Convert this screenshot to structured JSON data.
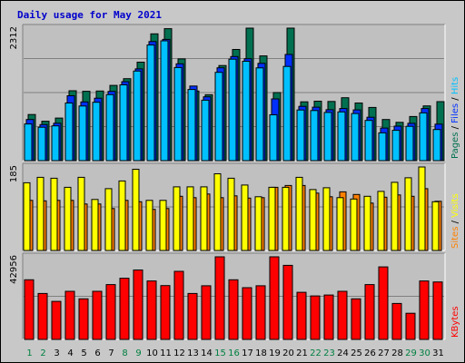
{
  "title": "Daily usage for May 2021",
  "colors": {
    "title": "#0000cc",
    "hits": "#00c0ff",
    "files": "#0030ff",
    "pages": "#007050",
    "visits": "#ffff00",
    "sites": "#ff8000",
    "kbytes": "#ff0000",
    "panel": "#c0c0c0",
    "day_weekday": "#000000",
    "day_weekend": "#008040"
  },
  "chart_data": [
    {
      "type": "bar",
      "panel": "pages-files-hits",
      "ymax_label": "2312",
      "categories": [
        "1",
        "2",
        "3",
        "4",
        "5",
        "6",
        "7",
        "8",
        "9",
        "10",
        "11",
        "12",
        "13",
        "14",
        "15",
        "16",
        "17",
        "18",
        "19",
        "20",
        "21",
        "22",
        "23",
        "24",
        "25",
        "26",
        "27",
        "28",
        "29",
        "30",
        "31"
      ],
      "series": [
        {
          "name": "Hits",
          "values": [
            640,
            582,
            606,
            1005,
            953,
            1019,
            1151,
            1322,
            1563,
            2017,
            2091,
            1625,
            1242,
            1055,
            1541,
            1771,
            1734,
            1619,
            799,
            1644,
            883,
            874,
            841,
            850,
            822,
            702,
            485,
            529,
            598,
            833,
            543
          ]
        },
        {
          "name": "Files",
          "values": [
            717,
            629,
            653,
            1132,
            1025,
            1090,
            1209,
            1377,
            1601,
            2077,
            2115,
            1689,
            1301,
            1114,
            1620,
            1817,
            1779,
            1698,
            1077,
            1853,
            947,
            932,
            888,
            909,
            886,
            757,
            568,
            601,
            651,
            909,
            637
          ]
        },
        {
          "name": "Pages",
          "values": [
            805,
            688,
            743,
            1220,
            1210,
            1214,
            1312,
            1430,
            1718,
            2213,
            2302,
            1775,
            1214,
            1150,
            1659,
            1940,
            2312,
            1827,
            1188,
            2312,
            1026,
            1037,
            1033,
            1098,
            1006,
            928,
            718,
            669,
            769,
            955,
            1029
          ]
        }
      ],
      "legend": [
        "Pages",
        "Files",
        "Hits"
      ],
      "ylim": [
        0,
        2312
      ]
    },
    {
      "type": "bar",
      "panel": "visits-sites",
      "ymax_label": "185",
      "categories": [
        "1",
        "2",
        "3",
        "4",
        "5",
        "6",
        "7",
        "8",
        "9",
        "10",
        "11",
        "12",
        "13",
        "14",
        "15",
        "16",
        "17",
        "18",
        "19",
        "20",
        "21",
        "22",
        "23",
        "24",
        "25",
        "26",
        "27",
        "28",
        "29",
        "30",
        "31"
      ],
      "series": [
        {
          "name": "Visits",
          "values": [
            150,
            162,
            160,
            140,
            162,
            113,
            137,
            154,
            180,
            111,
            111,
            141,
            141,
            141,
            170,
            160,
            145,
            119,
            140,
            140,
            162,
            135,
            139,
            117,
            114,
            120,
            131,
            151,
            161,
            185,
            108
          ]
        },
        {
          "name": "Sites",
          "values": [
            111,
            110,
            111,
            111,
            103,
            103,
            93,
            111,
            108,
            91,
            93,
            120,
            117,
            125,
            117,
            121,
            116,
            117,
            140,
            144,
            144,
            127,
            119,
            130,
            124,
            105,
            118,
            123,
            120,
            137,
            109
          ]
        }
      ],
      "legend": [
        "Sites",
        "Visits"
      ],
      "ylim": [
        0,
        185
      ]
    },
    {
      "type": "bar",
      "panel": "kbytes",
      "ymax_label": "42956",
      "categories": [
        "1",
        "2",
        "3",
        "4",
        "5",
        "6",
        "7",
        "8",
        "9",
        "10",
        "11",
        "12",
        "13",
        "14",
        "15",
        "16",
        "17",
        "18",
        "19",
        "20",
        "21",
        "22",
        "23",
        "24",
        "25",
        "26",
        "27",
        "28",
        "29",
        "30",
        "31"
      ],
      "series": [
        {
          "name": "KBytes",
          "values": [
            31000,
            23900,
            19800,
            25000,
            21100,
            25000,
            28500,
            31800,
            36100,
            30400,
            28000,
            35400,
            23900,
            27900,
            42956,
            31000,
            26900,
            27900,
            42956,
            38500,
            24500,
            22600,
            23100,
            25000,
            21100,
            28500,
            37700,
            18700,
            13600,
            30400,
            29900
          ]
        }
      ],
      "legend": [
        "KBytes"
      ],
      "ylim": [
        0,
        42956
      ]
    }
  ],
  "weekend_days": [
    "1",
    "2",
    "8",
    "9",
    "15",
    "16",
    "22",
    "23",
    "29",
    "30"
  ]
}
